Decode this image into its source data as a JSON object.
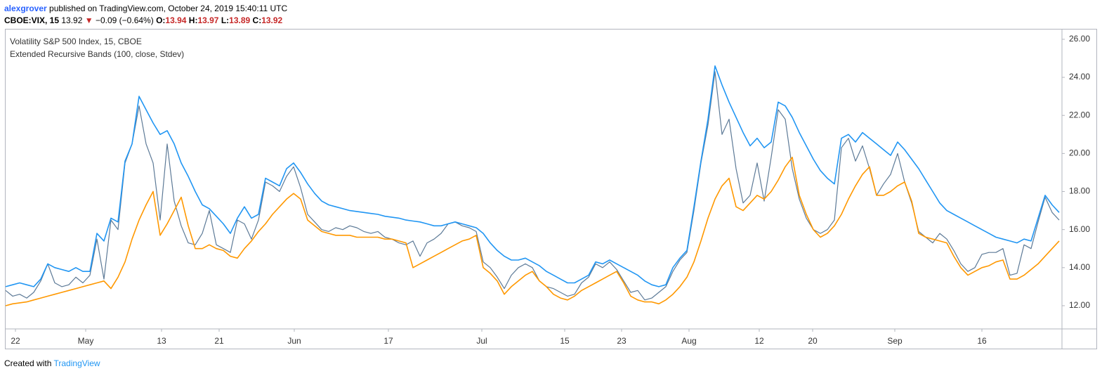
{
  "header": {
    "author": "alexgrover",
    "published": "published on TradingView.com, October 24, 2019 15:40:11 UTC",
    "symbol": "CBOE:VIX, 15",
    "last": "13.92",
    "arrow": "▼",
    "change": "−0.09 (−0.64%)",
    "o_label": "O:",
    "o": "13.94",
    "h_label": "H:",
    "h": "13.97",
    "l_label": "L:",
    "l": "13.89",
    "c_label": "C:",
    "c": "13.92"
  },
  "footer": {
    "created": "Created with",
    "brand": "TradingView"
  },
  "chart_data": {
    "type": "line",
    "indicator": "Extended Recursive Bands (100, close, Stdev)",
    "xlim": [
      0,
      150.4
    ],
    "ylim": [
      10.78,
      26.44
    ],
    "xticks": [
      {
        "value": 1.4,
        "label": "22"
      },
      {
        "value": 11.4,
        "label": "May"
      },
      {
        "value": 22.2,
        "label": "13"
      },
      {
        "value": 30.4,
        "label": "21"
      },
      {
        "value": 41.1,
        "label": "Jun"
      },
      {
        "value": 54.5,
        "label": "17"
      },
      {
        "value": 67.8,
        "label": "Jul"
      },
      {
        "value": 79.6,
        "label": "15"
      },
      {
        "value": 87.7,
        "label": "23"
      },
      {
        "value": 97.3,
        "label": "Aug"
      },
      {
        "value": 107.3,
        "label": "12"
      },
      {
        "value": 114.9,
        "label": "20"
      },
      {
        "value": 126.6,
        "label": "Sep"
      },
      {
        "value": 139.0,
        "label": "16"
      }
    ],
    "yticks": [
      {
        "value": 12,
        "label": "12.00"
      },
      {
        "value": 14,
        "label": "14.00"
      },
      {
        "value": 16,
        "label": "16.00"
      },
      {
        "value": 18,
        "label": "18.00"
      },
      {
        "value": 20,
        "label": "20.00"
      },
      {
        "value": 22,
        "label": "22.00"
      },
      {
        "value": 24,
        "label": "24.00"
      },
      {
        "value": 26,
        "label": "26.00"
      }
    ],
    "series": [
      {
        "name": "Volatility S&P 500 Index, 15, CBOE",
        "color": "#5d7a97",
        "values": [
          12.8,
          12.5,
          12.6,
          12.4,
          12.7,
          13.3,
          14.2,
          13.2,
          13.0,
          13.1,
          13.5,
          13.2,
          13.6,
          15.5,
          13.4,
          16.5,
          16.0,
          19.5,
          20.5,
          22.5,
          20.5,
          19.5,
          16.5,
          20.5,
          17.5,
          16.2,
          15.3,
          15.2,
          15.8,
          17.0,
          15.2,
          15.0,
          14.8,
          16.5,
          16.3,
          15.5,
          16.5,
          18.5,
          18.3,
          18.0,
          18.8,
          19.3,
          18.2,
          16.8,
          16.4,
          16.0,
          15.9,
          16.1,
          16.0,
          16.2,
          16.1,
          15.9,
          15.8,
          15.9,
          15.6,
          15.5,
          15.3,
          15.2,
          15.4,
          14.6,
          15.3,
          15.5,
          15.8,
          16.3,
          16.4,
          16.2,
          16.1,
          15.9,
          14.3,
          14.0,
          13.5,
          12.9,
          13.6,
          14.0,
          14.2,
          14.0,
          13.3,
          13.0,
          12.9,
          12.7,
          12.5,
          12.6,
          13.2,
          13.5,
          14.2,
          14.0,
          14.3,
          13.9,
          13.3,
          12.7,
          12.8,
          12.3,
          12.4,
          12.7,
          13.0,
          13.8,
          14.4,
          14.8,
          17.0,
          19.5,
          21.5,
          24.3,
          21.0,
          21.8,
          19.2,
          17.4,
          17.8,
          19.5,
          17.5,
          19.8,
          22.3,
          21.8,
          19.2,
          17.6,
          16.6,
          16.0,
          15.8,
          16.0,
          16.5,
          20.3,
          20.8,
          19.6,
          20.4,
          19.2,
          17.8,
          18.4,
          18.9,
          20.0,
          18.5,
          17.4,
          15.9,
          15.6,
          15.3,
          15.8,
          15.5,
          14.9,
          14.2,
          13.8,
          14.0,
          14.7,
          14.8,
          14.8,
          15.0,
          13.6,
          13.7,
          15.2,
          15.0,
          16.4,
          17.7,
          16.9,
          16.5
        ]
      },
      {
        "color": "#2196f3",
        "values": [
          13.0,
          13.1,
          13.2,
          13.1,
          13.0,
          13.4,
          14.2,
          14.0,
          13.9,
          13.8,
          14.0,
          13.8,
          13.8,
          15.8,
          15.4,
          16.6,
          16.4,
          19.6,
          20.5,
          23.0,
          22.3,
          21.6,
          21.0,
          21.2,
          20.5,
          19.5,
          18.8,
          18.0,
          17.3,
          17.1,
          16.7,
          16.3,
          15.8,
          16.6,
          17.2,
          16.6,
          16.8,
          18.7,
          18.5,
          18.3,
          19.2,
          19.5,
          19.0,
          18.4,
          17.9,
          17.5,
          17.3,
          17.2,
          17.1,
          17.0,
          16.95,
          16.9,
          16.85,
          16.8,
          16.7,
          16.65,
          16.6,
          16.5,
          16.45,
          16.4,
          16.3,
          16.2,
          16.2,
          16.3,
          16.4,
          16.3,
          16.2,
          16.1,
          15.8,
          15.3,
          14.9,
          14.6,
          14.4,
          14.4,
          14.5,
          14.3,
          14.1,
          13.8,
          13.6,
          13.4,
          13.2,
          13.2,
          13.4,
          13.6,
          14.3,
          14.2,
          14.4,
          14.2,
          14.0,
          13.8,
          13.6,
          13.3,
          13.1,
          13.0,
          13.1,
          14.0,
          14.5,
          14.9,
          17.2,
          19.6,
          21.8,
          24.6,
          23.6,
          22.7,
          21.9,
          21.1,
          20.4,
          20.8,
          20.3,
          20.6,
          22.7,
          22.5,
          21.9,
          21.1,
          20.4,
          19.7,
          19.1,
          18.7,
          18.4,
          20.8,
          21.0,
          20.6,
          21.1,
          20.8,
          20.5,
          20.2,
          19.9,
          20.6,
          20.2,
          19.7,
          19.2,
          18.6,
          18.0,
          17.4,
          17.0,
          16.8,
          16.6,
          16.4,
          16.2,
          16.0,
          15.8,
          15.6,
          15.5,
          15.4,
          15.3,
          15.5,
          15.4,
          16.6,
          17.8,
          17.3,
          16.9
        ]
      },
      {
        "color": "#ff9800",
        "values": [
          12.0,
          12.1,
          12.15,
          12.2,
          12.3,
          12.4,
          12.5,
          12.6,
          12.7,
          12.8,
          12.9,
          13.0,
          13.1,
          13.2,
          13.3,
          12.9,
          13.5,
          14.3,
          15.5,
          16.5,
          17.3,
          18.0,
          15.7,
          16.3,
          17.0,
          17.7,
          16.2,
          15.0,
          15.0,
          15.2,
          15.0,
          14.9,
          14.6,
          14.5,
          15.0,
          15.4,
          15.9,
          16.3,
          16.8,
          17.2,
          17.6,
          17.9,
          17.6,
          16.5,
          16.2,
          15.9,
          15.8,
          15.7,
          15.7,
          15.7,
          15.6,
          15.6,
          15.6,
          15.6,
          15.5,
          15.5,
          15.4,
          15.3,
          14.0,
          14.2,
          14.4,
          14.6,
          14.8,
          15.0,
          15.2,
          15.4,
          15.5,
          15.7,
          14.0,
          13.7,
          13.3,
          12.6,
          13.0,
          13.3,
          13.6,
          13.8,
          13.3,
          13.0,
          12.6,
          12.4,
          12.3,
          12.5,
          12.8,
          13.0,
          13.2,
          13.4,
          13.6,
          13.8,
          13.2,
          12.5,
          12.3,
          12.2,
          12.2,
          12.1,
          12.3,
          12.6,
          13.0,
          13.5,
          14.3,
          15.4,
          16.6,
          17.6,
          18.3,
          18.7,
          17.2,
          17.0,
          17.4,
          17.8,
          17.6,
          18.0,
          18.6,
          19.3,
          19.8,
          17.8,
          16.8,
          16.0,
          15.6,
          15.8,
          16.2,
          16.8,
          17.6,
          18.3,
          18.9,
          19.3,
          17.8,
          17.8,
          18.0,
          18.3,
          18.5,
          17.5,
          15.8,
          15.6,
          15.5,
          15.4,
          15.3,
          14.6,
          14.0,
          13.6,
          13.8,
          14.0,
          14.1,
          14.3,
          14.4,
          13.4,
          13.4,
          13.6,
          13.9,
          14.2,
          14.6,
          15.0,
          15.4
        ]
      }
    ]
  }
}
